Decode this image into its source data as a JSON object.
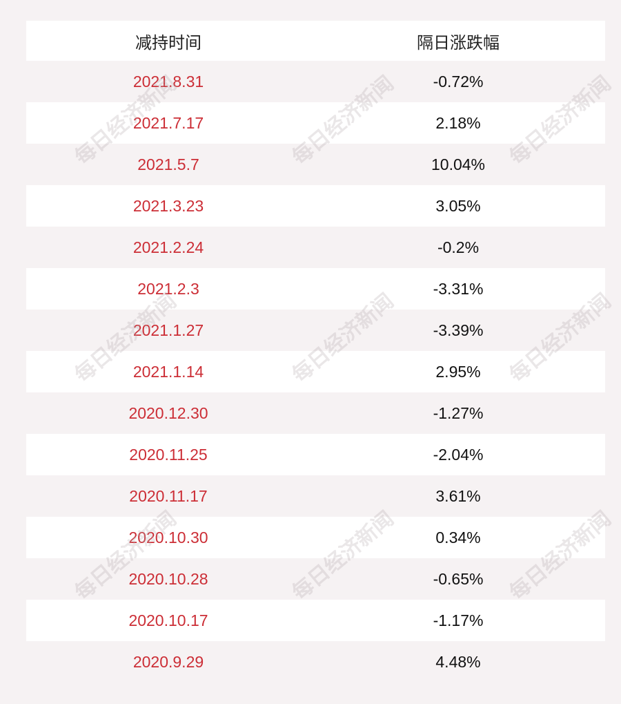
{
  "table": {
    "header": [
      "减持时间",
      "隔日涨跌幅"
    ],
    "rows": [
      [
        "2021.8.31",
        "-0.72%"
      ],
      [
        "2021.7.17",
        "2.18%"
      ],
      [
        "2021.5.7",
        "10.04%"
      ],
      [
        "2021.3.23",
        "3.05%"
      ],
      [
        "2021.2.24",
        "-0.2%"
      ],
      [
        "2021.2.3",
        "-3.31%"
      ],
      [
        "2021.1.27",
        "-3.39%"
      ],
      [
        "2021.1.14",
        "2.95%"
      ],
      [
        "2020.12.30",
        "-1.27%"
      ],
      [
        "2020.11.25",
        "-2.04%"
      ],
      [
        "2020.11.17",
        "3.61%"
      ],
      [
        "2020.10.30",
        "0.34%"
      ],
      [
        "2020.10.28",
        "-0.65%"
      ],
      [
        "2020.10.17",
        "-1.17%"
      ],
      [
        "2020.9.29",
        "4.48%"
      ]
    ]
  },
  "watermark": "每日经济新闻"
}
